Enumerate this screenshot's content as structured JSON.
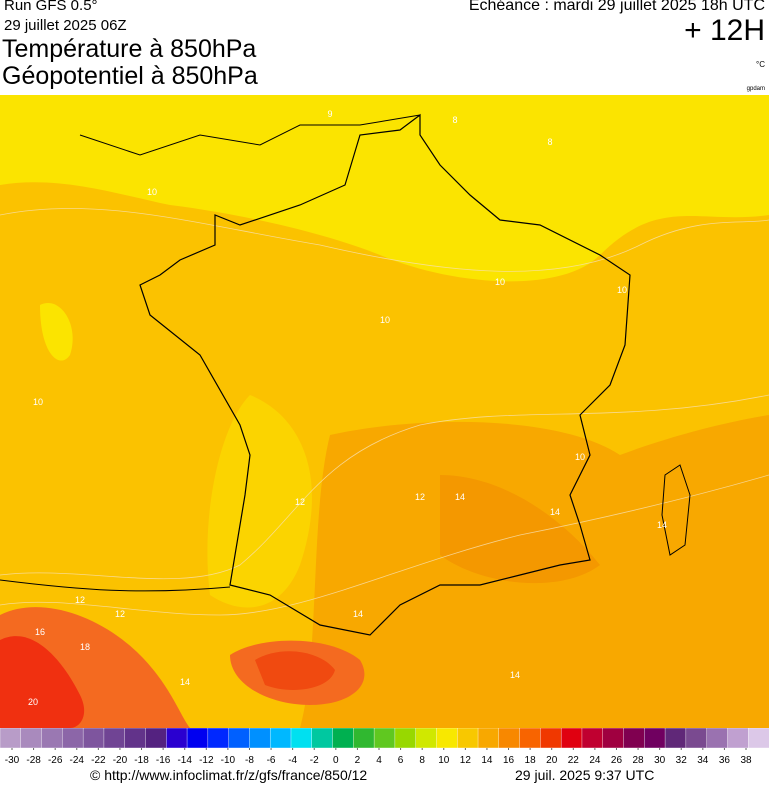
{
  "header": {
    "run": "Run GFS 0.5°",
    "run_date": "29 juillet 2025 06Z",
    "title_1": "Température à 850hPa",
    "title_2": "Géopotentiel à 850hPa",
    "valid": "Echéance : mardi 29 juillet 2025 18h UTC",
    "lead": "+ 12H",
    "unit": "°C",
    "unit_2": "gpdam"
  },
  "map": {
    "contour_labels": [
      "9",
      "8",
      "8",
      "10",
      "10",
      "10",
      "10",
      "10",
      "10",
      "12",
      "12",
      "12",
      "12",
      "14",
      "14",
      "14",
      "14",
      "14",
      "16",
      "18",
      "20",
      "14"
    ]
  },
  "colorbar": {
    "labels": [
      -30,
      -28,
      -26,
      -24,
      -22,
      -20,
      -18,
      -16,
      -14,
      -12,
      -10,
      -8,
      -6,
      -4,
      -2,
      0,
      2,
      4,
      6,
      8,
      10,
      12,
      14,
      16,
      18,
      20,
      22,
      24,
      26,
      28,
      30,
      32,
      34,
      36,
      38
    ],
    "colors": [
      "#b89cc8",
      "#a98abd",
      "#9a78b2",
      "#8c66a8",
      "#7e559e",
      "#704494",
      "#62338a",
      "#542280",
      "#2a00d0",
      "#0000f0",
      "#0028ff",
      "#0060ff",
      "#0090ff",
      "#00b8ff",
      "#00e0f0",
      "#00c8a0",
      "#00b050",
      "#30b830",
      "#60c820",
      "#98d800",
      "#d0e800",
      "#f8e800",
      "#f8c800",
      "#f8a800",
      "#f88800",
      "#f86400",
      "#f03800",
      "#e00010",
      "#c00030",
      "#a00040",
      "#800050",
      "#700060",
      "#602878",
      "#7a4a90",
      "#9a72b0",
      "#c0a0d0",
      "#dcc8e8"
    ]
  },
  "footer": {
    "url": "© http://www.infoclimat.fr/z/gfs/france/850/12",
    "stamp": "29 juil. 2025  9:37 UTC"
  }
}
